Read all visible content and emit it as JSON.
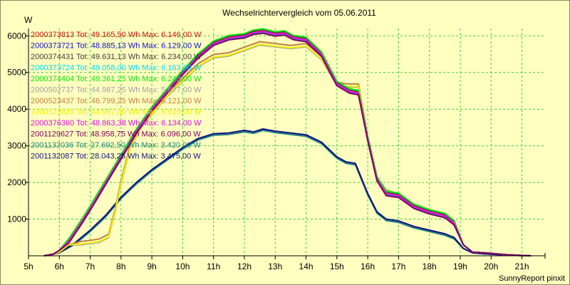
{
  "chart_data": {
    "type": "line",
    "title": "Wechselrichtervergleich vom 05.06.2011",
    "ylabel": "W",
    "xlabel": "",
    "xlim": [
      5,
      21.75
    ],
    "ylim": [
      0,
      6200
    ],
    "x_ticks": [
      {
        "v": 5,
        "label": "5h"
      },
      {
        "v": 6,
        "label": "6h"
      },
      {
        "v": 7,
        "label": "7h"
      },
      {
        "v": 8,
        "label": "8h"
      },
      {
        "v": 9,
        "label": "9h"
      },
      {
        "v": 10,
        "label": "10h"
      },
      {
        "v": 11,
        "label": "11h"
      },
      {
        "v": 12,
        "label": "12h"
      },
      {
        "v": 13,
        "label": "13h"
      },
      {
        "v": 14,
        "label": "14h"
      },
      {
        "v": 15,
        "label": "15h"
      },
      {
        "v": 16,
        "label": "16h"
      },
      {
        "v": 17,
        "label": "17h"
      },
      {
        "v": 18,
        "label": "18h"
      },
      {
        "v": 19,
        "label": "19h"
      },
      {
        "v": 20,
        "label": "20h"
      },
      {
        "v": 21,
        "label": "21h"
      }
    ],
    "y_ticks": [
      {
        "v": 1000,
        "label": "1000"
      },
      {
        "v": 2000,
        "label": "2000"
      },
      {
        "v": 3000,
        "label": "3000"
      },
      {
        "v": 4000,
        "label": "4000"
      },
      {
        "v": 5000,
        "label": "5000"
      },
      {
        "v": 6000,
        "label": "6000"
      }
    ],
    "grid": true,
    "legend_position": "top-left",
    "footer": "SunnyReport pinxit",
    "series": [
      {
        "name": "2000373813 Tot: 49.165,50 Wh Max: 6.146,00 W",
        "color": "#d01010",
        "group": "A",
        "offset": 0
      },
      {
        "name": "2000373721 Tot: 48.885,13 Wh Max: 6.129,00 W",
        "color": "#1010c8",
        "group": "A",
        "offset": -40
      },
      {
        "name": "2000374431 Tot: 49.631,13 Wh Max: 6.234,00 W",
        "color": "#404040",
        "group": "A",
        "offset": 40
      },
      {
        "name": "2000373724 Tot: 49.058,00 Wh Max: 6.163,00 W",
        "color": "#00d8f0",
        "group": "A",
        "offset": -20
      },
      {
        "name": "2000374404 Tot: 49.361,25 Wh Max: 6.243,00 W",
        "color": "#10e010",
        "group": "A",
        "offset": 60
      },
      {
        "name": "2000502737 Tot: 44.987,25 Wh Max: 5.877,00 W",
        "color": "#a0a0a0",
        "group": "B",
        "offset": -50
      },
      {
        "name": "2000523437 Tot: 46.799,25 Wh Max: 6.121,00 W",
        "color": "#c08040",
        "group": "B",
        "offset": 40
      },
      {
        "name": "2000523629 Tot: 44.967,00 Wh Max: 5.919,00 W",
        "color": "#f0f000",
        "group": "B",
        "offset": -30
      },
      {
        "name": "2000376360 Tot: 48.863,38 Wh Max: 6.134,00 W",
        "color": "#e010e0",
        "group": "A",
        "offset": -10
      },
      {
        "name": "2001129627 Tot: 48.958,75 Wh Max: 6.096,00 W",
        "color": "#800060",
        "group": "A",
        "offset": -60
      },
      {
        "name": "2001132036 Tot: 27.692,50 Wh Max: 3.420,00 W",
        "color": "#208080",
        "group": "C",
        "offset": -40
      },
      {
        "name": "2001132087 Tot: 28.043,25 Wh Max: 3.475,00 W",
        "color": "#101080",
        "group": "C",
        "offset": 0
      }
    ],
    "profiles": {
      "A": [
        [
          5.5,
          0
        ],
        [
          5.8,
          40
        ],
        [
          6,
          150
        ],
        [
          6.3,
          400
        ],
        [
          6.7,
          900
        ],
        [
          7,
          1300
        ],
        [
          7.5,
          2000
        ],
        [
          8,
          2700
        ],
        [
          8.5,
          3400
        ],
        [
          9,
          4000
        ],
        [
          9.5,
          4500
        ],
        [
          10,
          5000
        ],
        [
          10.5,
          5450
        ],
        [
          11,
          5800
        ],
        [
          11.5,
          5950
        ],
        [
          12,
          6000
        ],
        [
          12.3,
          6100
        ],
        [
          12.6,
          6130
        ],
        [
          13,
          6050
        ],
        [
          13.3,
          6080
        ],
        [
          13.6,
          5950
        ],
        [
          14,
          5900
        ],
        [
          14.5,
          5500
        ],
        [
          15,
          4700
        ],
        [
          15.4,
          4500
        ],
        [
          15.7,
          4450
        ],
        [
          16,
          3200
        ],
        [
          16.3,
          2100
        ],
        [
          16.6,
          1700
        ],
        [
          17,
          1650
        ],
        [
          17.5,
          1350
        ],
        [
          18,
          1200
        ],
        [
          18.5,
          1100
        ],
        [
          18.8,
          900
        ],
        [
          19.1,
          300
        ],
        [
          19.4,
          100
        ],
        [
          19.8,
          80
        ],
        [
          20.5,
          30
        ],
        [
          21,
          10
        ],
        [
          21.3,
          0
        ]
      ],
      "B": [
        [
          5.6,
          0
        ],
        [
          6,
          100
        ],
        [
          6.3,
          300
        ],
        [
          6.7,
          350
        ],
        [
          7,
          380
        ],
        [
          7.3,
          420
        ],
        [
          7.6,
          550
        ],
        [
          7.8,
          1200
        ],
        [
          8,
          2000
        ],
        [
          8.3,
          3000
        ],
        [
          8.7,
          3600
        ],
        [
          9,
          3900
        ],
        [
          9.5,
          4400
        ],
        [
          10,
          4800
        ],
        [
          10.5,
          5200
        ],
        [
          11,
          5450
        ],
        [
          11.5,
          5500
        ],
        [
          12,
          5650
        ],
        [
          12.5,
          5800
        ],
        [
          13,
          5750
        ],
        [
          13.5,
          5700
        ],
        [
          14,
          5750
        ],
        [
          14.5,
          5400
        ],
        [
          15,
          4700
        ],
        [
          15.3,
          4650
        ],
        [
          15.7,
          4650
        ],
        [
          16,
          3200
        ],
        [
          16.3,
          2100
        ],
        [
          16.6,
          1750
        ],
        [
          17,
          1650
        ],
        [
          17.5,
          1350
        ],
        [
          18,
          1200
        ],
        [
          18.5,
          1100
        ],
        [
          18.8,
          900
        ],
        [
          19.1,
          300
        ],
        [
          19.4,
          100
        ],
        [
          19.8,
          80
        ],
        [
          20.5,
          30
        ],
        [
          21,
          10
        ],
        [
          21.3,
          0
        ]
      ],
      "C": [
        [
          5.5,
          0
        ],
        [
          6,
          80
        ],
        [
          6.5,
          350
        ],
        [
          7,
          700
        ],
        [
          7.5,
          1100
        ],
        [
          8,
          1600
        ],
        [
          8.5,
          2000
        ],
        [
          9,
          2350
        ],
        [
          9.5,
          2650
        ],
        [
          10,
          2950
        ],
        [
          10.5,
          3200
        ],
        [
          11,
          3330
        ],
        [
          11.5,
          3350
        ],
        [
          12,
          3420
        ],
        [
          12.3,
          3380
        ],
        [
          12.6,
          3460
        ],
        [
          13,
          3400
        ],
        [
          13.5,
          3350
        ],
        [
          14,
          3300
        ],
        [
          14.5,
          3100
        ],
        [
          15,
          2700
        ],
        [
          15.3,
          2560
        ],
        [
          15.6,
          2520
        ],
        [
          16,
          1700
        ],
        [
          16.3,
          1200
        ],
        [
          16.6,
          1000
        ],
        [
          17,
          950
        ],
        [
          17.5,
          800
        ],
        [
          18,
          700
        ],
        [
          18.5,
          600
        ],
        [
          18.8,
          500
        ],
        [
          19.1,
          200
        ],
        [
          19.4,
          80
        ],
        [
          19.8,
          50
        ],
        [
          20.5,
          20
        ],
        [
          21,
          5
        ],
        [
          21.3,
          0
        ]
      ]
    }
  }
}
